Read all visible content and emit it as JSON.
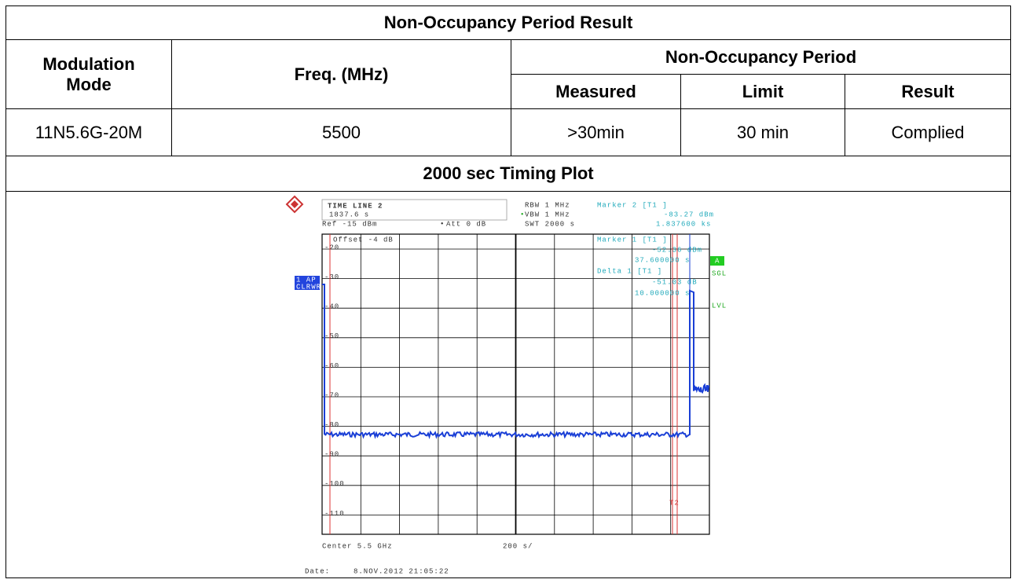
{
  "table": {
    "title": "Non-Occupancy Period Result",
    "header": {
      "mode": "Modulation Mode",
      "freq": "Freq. (MHz)",
      "group": "Non-Occupancy Period",
      "measured": "Measured",
      "limit": "Limit",
      "result": "Result"
    },
    "rows": [
      [
        "11N5.6G-20M",
        "5500",
        ">30min",
        "30 min",
        "Complied"
      ]
    ],
    "plot_title": "2000 sec Timing Plot"
  },
  "plot": {
    "time_line": "TIME LINE 2",
    "time_line_value": "1837.6 s",
    "ref": "Ref -15 dBm",
    "att": "Att  0 dB",
    "rbw": "RBW 1 MHz",
    "vbw": "VBW 1 MHz",
    "swt": "SWT 2000 s",
    "marker2": "Marker 2 [T1 ]",
    "marker2_level": "-83.27 dBm",
    "marker2_time": "1.837600 ks",
    "offset": "Offset -4 dB",
    "marker1": "Marker 1 [T1 ]",
    "marker1_level": "-52.36 dBm",
    "marker1_time": "37.600000 s",
    "delta1": "Delta 1 [T1 ]",
    "delta1_level": "-51.03 dB",
    "delta1_time": "10.000000 s",
    "trace_mode": [
      "1 AP",
      "CLRWR"
    ],
    "side_flags": [
      "A",
      "SGL",
      "LVL"
    ],
    "y_labels": [
      "-20",
      "-30",
      "-40",
      "-50",
      "-60",
      "-70",
      "-80",
      "-90",
      "-100",
      "-110"
    ],
    "marker_t2": "T2",
    "center": "Center 5.5 GHz",
    "span": "200 s/",
    "date_label": "Date:",
    "date": "8.NOV.2012  21:05:22"
  }
}
